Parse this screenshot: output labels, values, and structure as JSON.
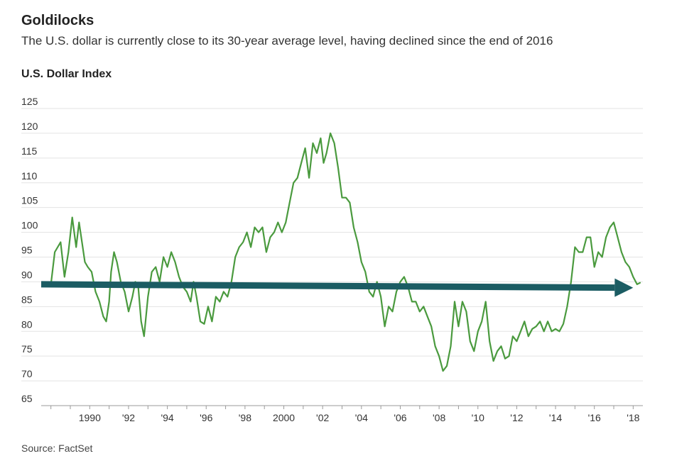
{
  "header": {
    "title": "Goldilocks",
    "subtitle": "The U.S. dollar is currently close to its 30-year average level, having declined since the end of 2016"
  },
  "footer": {
    "source": "Source: FactSet"
  },
  "colors": {
    "line": "#4a9a3e",
    "arrow": "#1b5c63",
    "grid": "#e3e3e3",
    "axis": "#9a9a9a"
  },
  "chart_data": {
    "type": "line",
    "title": "",
    "ylabel": "U.S. Dollar Index",
    "xlabel": "",
    "xlim": [
      1987.5,
      2018.5
    ],
    "ylim": [
      65,
      125
    ],
    "grid": true,
    "y_ticks": [
      {
        "value": 65,
        "label": "65"
      },
      {
        "value": 70,
        "label": "70"
      },
      {
        "value": 75,
        "label": "75"
      },
      {
        "value": 80,
        "label": "80"
      },
      {
        "value": 85,
        "label": "85"
      },
      {
        "value": 90,
        "label": "90"
      },
      {
        "value": 95,
        "label": "95"
      },
      {
        "value": 100,
        "label": "100"
      },
      {
        "value": 105,
        "label": "105"
      },
      {
        "value": 110,
        "label": "110"
      },
      {
        "value": 115,
        "label": "115"
      },
      {
        "value": 120,
        "label": "120"
      },
      {
        "value": 125,
        "label": "125"
      }
    ],
    "x_ticks": [
      {
        "value": 1990,
        "label": "1990"
      },
      {
        "value": 1992,
        "label": "'92"
      },
      {
        "value": 1994,
        "label": "'94"
      },
      {
        "value": 1996,
        "label": "'96"
      },
      {
        "value": 1998,
        "label": "'98"
      },
      {
        "value": 2000,
        "label": "2000"
      },
      {
        "value": 2002,
        "label": "'02"
      },
      {
        "value": 2004,
        "label": "'04"
      },
      {
        "value": 2006,
        "label": "'06"
      },
      {
        "value": 2008,
        "label": "'08"
      },
      {
        "value": 2010,
        "label": "'10"
      },
      {
        "value": 2012,
        "label": "'12"
      },
      {
        "value": 2014,
        "label": "'14"
      },
      {
        "value": 2016,
        "label": "'16"
      },
      {
        "value": 2018,
        "label": "'18"
      }
    ],
    "series": [
      {
        "x": [
          1988.0,
          1988.2,
          1988.5,
          1988.7,
          1988.9,
          1989.1,
          1989.3,
          1989.45,
          1989.6,
          1989.75,
          1989.9,
          1990.1,
          1990.3,
          1990.5,
          1990.7,
          1990.85,
          1991.0,
          1991.1,
          1991.25,
          1991.4,
          1991.6,
          1991.8,
          1992.0,
          1992.2,
          1992.35,
          1992.5,
          1992.65,
          1992.8,
          1993.0,
          1993.2,
          1993.4,
          1993.6,
          1993.8,
          1994.0,
          1994.2,
          1994.4,
          1994.6,
          1994.8,
          1995.0,
          1995.2,
          1995.35,
          1995.5,
          1995.7,
          1995.9,
          1996.1,
          1996.3,
          1996.5,
          1996.7,
          1996.9,
          1997.1,
          1997.3,
          1997.5,
          1997.7,
          1997.9,
          1998.1,
          1998.3,
          1998.5,
          1998.7,
          1998.9,
          1999.1,
          1999.3,
          1999.5,
          1999.7,
          1999.9,
          2000.1,
          2000.3,
          2000.5,
          2000.7,
          2000.9,
          2001.1,
          2001.3,
          2001.5,
          2001.7,
          2001.9,
          2002.05,
          2002.2,
          2002.4,
          2002.6,
          2002.8,
          2003.0,
          2003.2,
          2003.4,
          2003.6,
          2003.8,
          2004.0,
          2004.2,
          2004.4,
          2004.6,
          2004.8,
          2005.0,
          2005.2,
          2005.4,
          2005.6,
          2005.8,
          2006.0,
          2006.2,
          2006.4,
          2006.6,
          2006.8,
          2007.0,
          2007.2,
          2007.4,
          2007.6,
          2007.8,
          2008.0,
          2008.2,
          2008.4,
          2008.6,
          2008.8,
          2009.0,
          2009.2,
          2009.4,
          2009.6,
          2009.8,
          2010.0,
          2010.2,
          2010.4,
          2010.6,
          2010.8,
          2011.0,
          2011.2,
          2011.4,
          2011.6,
          2011.8,
          2012.0,
          2012.2,
          2012.4,
          2012.6,
          2012.8,
          2013.0,
          2013.2,
          2013.4,
          2013.6,
          2013.8,
          2014.0,
          2014.2,
          2014.4,
          2014.6,
          2014.8,
          2015.0,
          2015.2,
          2015.4,
          2015.6,
          2015.8,
          2016.0,
          2016.2,
          2016.4,
          2016.6,
          2016.8,
          2017.0,
          2017.2,
          2017.4,
          2017.6,
          2017.8,
          2018.0,
          2018.2,
          2018.35
        ],
        "y": [
          89.5,
          96.0,
          98.0,
          91.0,
          96.0,
          103.0,
          97.0,
          102.0,
          98.0,
          94.0,
          93.0,
          92.0,
          88.0,
          86.0,
          83.0,
          82.0,
          86.0,
          92.0,
          96.0,
          94.0,
          90.0,
          88.0,
          84.0,
          87.0,
          90.0,
          89.0,
          82.0,
          79.0,
          87.0,
          92.0,
          93.0,
          90.0,
          95.0,
          93.0,
          96.0,
          94.0,
          91.0,
          89.0,
          88.0,
          86.0,
          90.0,
          87.0,
          82.0,
          81.5,
          85.0,
          82.0,
          87.0,
          86.0,
          88.0,
          87.0,
          90.0,
          95.0,
          97.0,
          98.0,
          100.0,
          97.0,
          101.0,
          100.0,
          101.0,
          96.0,
          99.0,
          100.0,
          102.0,
          100.0,
          102.0,
          106.0,
          110.0,
          111.0,
          114.0,
          117.0,
          111.0,
          118.0,
          116.0,
          119.0,
          114.0,
          116.0,
          120.0,
          118.0,
          113.0,
          107.0,
          107.0,
          106.0,
          101.0,
          98.0,
          94.0,
          92.0,
          88.0,
          87.0,
          90.0,
          87.0,
          81.0,
          85.0,
          84.0,
          88.0,
          90.0,
          91.0,
          89.0,
          86.0,
          86.0,
          84.0,
          85.0,
          83.0,
          81.0,
          77.0,
          75.0,
          72.0,
          73.0,
          77.0,
          86.0,
          81.0,
          86.0,
          84.0,
          78.0,
          76.0,
          80.0,
          82.0,
          86.0,
          78.0,
          74.0,
          76.0,
          77.0,
          74.5,
          75.0,
          79.0,
          78.0,
          80.0,
          82.0,
          79.0,
          80.5,
          81.0,
          82.0,
          80.0,
          82.0,
          80.0,
          80.5,
          80.0,
          81.5,
          85.0,
          90.0,
          97.0,
          96.0,
          96.0,
          99.0,
          99.0,
          93.0,
          96.0,
          95.0,
          99.0,
          101.0,
          102.0,
          99.0,
          96.0,
          94.0,
          93.0,
          91.0,
          89.5,
          89.8
        ]
      }
    ],
    "annotations": [
      {
        "type": "arrow",
        "from": [
          1987.5,
          89.5
        ],
        "to": [
          2018.0,
          88.8
        ]
      }
    ]
  }
}
